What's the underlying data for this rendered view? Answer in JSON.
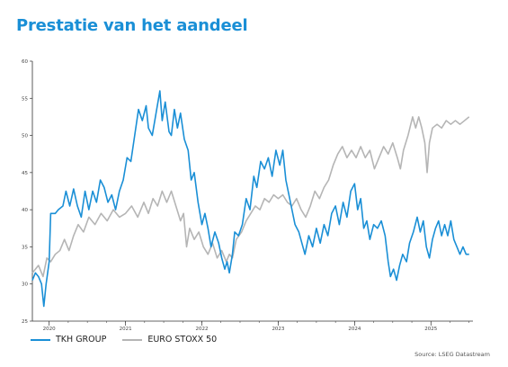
{
  "title": "Prestatie van het aandeel",
  "source": "Source: LSEG Datastream",
  "colors": {
    "title": "#1a8fd6",
    "tkh": "#1a8fd6",
    "stoxx": "#b5b5b5"
  },
  "chart_data": {
    "type": "line",
    "title": "Prestatie van het aandeel",
    "xlabel": "",
    "ylabel": "",
    "xlim": [
      2019.78,
      2025.55
    ],
    "ylim": [
      25,
      60
    ],
    "y_ticks": [
      "25",
      "30",
      "35",
      "40",
      "45",
      "50",
      "55",
      "60"
    ],
    "x_ticks": [
      {
        "label": "2020",
        "x": 2020.0
      },
      {
        "label": "2021",
        "x": 2021.0
      },
      {
        "label": "2022",
        "x": 2022.0
      },
      {
        "label": "2023",
        "x": 2023.0
      },
      {
        "label": "2024",
        "x": 2024.0
      },
      {
        "label": "2025",
        "x": 2025.0
      }
    ],
    "grid": false,
    "legend_position": "bottom-left",
    "series": [
      {
        "name": "TKH GROUP",
        "color": "#1a8fd6",
        "points": [
          [
            2019.78,
            30.5
          ],
          [
            2019.82,
            31.5
          ],
          [
            2019.86,
            31.0
          ],
          [
            2019.9,
            30.0
          ],
          [
            2019.93,
            27.0
          ],
          [
            2019.96,
            30.0
          ],
          [
            2020.0,
            33.0
          ],
          [
            2020.02,
            39.5
          ],
          [
            2020.08,
            39.5
          ],
          [
            2020.12,
            40.0
          ],
          [
            2020.18,
            40.5
          ],
          [
            2020.22,
            42.5
          ],
          [
            2020.27,
            40.5
          ],
          [
            2020.32,
            42.8
          ],
          [
            2020.37,
            40.5
          ],
          [
            2020.42,
            39.0
          ],
          [
            2020.47,
            42.5
          ],
          [
            2020.52,
            40.0
          ],
          [
            2020.57,
            42.5
          ],
          [
            2020.62,
            41.0
          ],
          [
            2020.67,
            44.0
          ],
          [
            2020.72,
            43.0
          ],
          [
            2020.77,
            41.0
          ],
          [
            2020.82,
            42.0
          ],
          [
            2020.87,
            40.0
          ],
          [
            2020.92,
            42.5
          ],
          [
            2020.97,
            44.0
          ],
          [
            2021.02,
            47.0
          ],
          [
            2021.07,
            46.5
          ],
          [
            2021.12,
            50.0
          ],
          [
            2021.17,
            53.5
          ],
          [
            2021.22,
            52.0
          ],
          [
            2021.27,
            54.0
          ],
          [
            2021.3,
            51.0
          ],
          [
            2021.35,
            50.0
          ],
          [
            2021.4,
            53.0
          ],
          [
            2021.45,
            56.0
          ],
          [
            2021.48,
            52.0
          ],
          [
            2021.52,
            54.5
          ],
          [
            2021.57,
            50.5
          ],
          [
            2021.6,
            50.0
          ],
          [
            2021.64,
            53.5
          ],
          [
            2021.68,
            51.0
          ],
          [
            2021.72,
            53.0
          ],
          [
            2021.77,
            49.5
          ],
          [
            2021.82,
            48.0
          ],
          [
            2021.86,
            44.0
          ],
          [
            2021.9,
            45.0
          ],
          [
            2021.95,
            41.0
          ],
          [
            2022.0,
            38.0
          ],
          [
            2022.04,
            39.5
          ],
          [
            2022.08,
            37.5
          ],
          [
            2022.12,
            35.0
          ],
          [
            2022.17,
            37.0
          ],
          [
            2022.22,
            35.5
          ],
          [
            2022.26,
            33.5
          ],
          [
            2022.3,
            32.0
          ],
          [
            2022.33,
            33.0
          ],
          [
            2022.36,
            31.5
          ],
          [
            2022.4,
            34.0
          ],
          [
            2022.43,
            37.0
          ],
          [
            2022.48,
            36.5
          ],
          [
            2022.53,
            38.0
          ],
          [
            2022.58,
            41.5
          ],
          [
            2022.63,
            40.0
          ],
          [
            2022.68,
            44.5
          ],
          [
            2022.72,
            43.0
          ],
          [
            2022.77,
            46.5
          ],
          [
            2022.82,
            45.5
          ],
          [
            2022.87,
            47.0
          ],
          [
            2022.92,
            44.5
          ],
          [
            2022.97,
            48.0
          ],
          [
            2023.02,
            46.0
          ],
          [
            2023.06,
            48.0
          ],
          [
            2023.1,
            44.0
          ],
          [
            2023.14,
            42.0
          ],
          [
            2023.18,
            40.0
          ],
          [
            2023.22,
            38.0
          ],
          [
            2023.27,
            37.0
          ],
          [
            2023.31,
            35.5
          ],
          [
            2023.35,
            34.0
          ],
          [
            2023.4,
            36.5
          ],
          [
            2023.45,
            35.0
          ],
          [
            2023.5,
            37.5
          ],
          [
            2023.55,
            35.5
          ],
          [
            2023.6,
            38.0
          ],
          [
            2023.65,
            36.5
          ],
          [
            2023.7,
            39.5
          ],
          [
            2023.75,
            40.5
          ],
          [
            2023.8,
            38.0
          ],
          [
            2023.85,
            41.0
          ],
          [
            2023.9,
            39.0
          ],
          [
            2023.95,
            42.5
          ],
          [
            2024.0,
            43.5
          ],
          [
            2024.04,
            40.0
          ],
          [
            2024.08,
            41.5
          ],
          [
            2024.12,
            37.5
          ],
          [
            2024.16,
            38.5
          ],
          [
            2024.2,
            36.0
          ],
          [
            2024.25,
            38.0
          ],
          [
            2024.3,
            37.5
          ],
          [
            2024.35,
            38.5
          ],
          [
            2024.4,
            36.5
          ],
          [
            2024.44,
            33.0
          ],
          [
            2024.47,
            31.0
          ],
          [
            2024.51,
            32.0
          ],
          [
            2024.55,
            30.5
          ],
          [
            2024.59,
            32.5
          ],
          [
            2024.63,
            34.0
          ],
          [
            2024.68,
            33.0
          ],
          [
            2024.72,
            35.5
          ],
          [
            2024.77,
            37.0
          ],
          [
            2024.82,
            39.0
          ],
          [
            2024.86,
            37.0
          ],
          [
            2024.9,
            38.5
          ],
          [
            2024.94,
            35.0
          ],
          [
            2024.98,
            33.5
          ],
          [
            2025.02,
            36.0
          ],
          [
            2025.06,
            37.5
          ],
          [
            2025.1,
            38.5
          ],
          [
            2025.14,
            36.5
          ],
          [
            2025.18,
            38.0
          ],
          [
            2025.22,
            36.5
          ],
          [
            2025.26,
            38.5
          ],
          [
            2025.3,
            36.0
          ],
          [
            2025.34,
            35.0
          ],
          [
            2025.38,
            34.0
          ],
          [
            2025.42,
            35.0
          ],
          [
            2025.46,
            34.0
          ],
          [
            2025.5,
            34.0
          ]
        ]
      },
      {
        "name": "EURO STOXX 50",
        "color": "#b5b5b5",
        "points": [
          [
            2019.78,
            31.5
          ],
          [
            2019.86,
            32.5
          ],
          [
            2019.92,
            31.0
          ],
          [
            2019.97,
            33.5
          ],
          [
            2020.02,
            33.0
          ],
          [
            2020.08,
            34.0
          ],
          [
            2020.14,
            34.5
          ],
          [
            2020.2,
            36.0
          ],
          [
            2020.26,
            34.5
          ],
          [
            2020.32,
            36.5
          ],
          [
            2020.38,
            38.0
          ],
          [
            2020.45,
            37.0
          ],
          [
            2020.52,
            39.0
          ],
          [
            2020.6,
            38.0
          ],
          [
            2020.68,
            39.5
          ],
          [
            2020.76,
            38.5
          ],
          [
            2020.84,
            40.0
          ],
          [
            2020.92,
            39.0
          ],
          [
            2021.0,
            39.5
          ],
          [
            2021.08,
            40.5
          ],
          [
            2021.16,
            39.0
          ],
          [
            2021.24,
            41.0
          ],
          [
            2021.3,
            39.5
          ],
          [
            2021.36,
            41.5
          ],
          [
            2021.42,
            40.5
          ],
          [
            2021.48,
            42.5
          ],
          [
            2021.54,
            41.0
          ],
          [
            2021.6,
            42.5
          ],
          [
            2021.66,
            40.5
          ],
          [
            2021.72,
            38.5
          ],
          [
            2021.76,
            39.5
          ],
          [
            2021.8,
            35.0
          ],
          [
            2021.84,
            37.5
          ],
          [
            2021.9,
            36.0
          ],
          [
            2021.96,
            37.0
          ],
          [
            2022.02,
            35.0
          ],
          [
            2022.08,
            34.0
          ],
          [
            2022.14,
            35.5
          ],
          [
            2022.2,
            33.5
          ],
          [
            2022.26,
            34.5
          ],
          [
            2022.32,
            33.0
          ],
          [
            2022.36,
            34.0
          ],
          [
            2022.4,
            33.5
          ],
          [
            2022.45,
            36.0
          ],
          [
            2022.52,
            37.0
          ],
          [
            2022.58,
            38.5
          ],
          [
            2022.64,
            39.5
          ],
          [
            2022.7,
            40.5
          ],
          [
            2022.76,
            40.0
          ],
          [
            2022.82,
            41.5
          ],
          [
            2022.88,
            41.0
          ],
          [
            2022.94,
            42.0
          ],
          [
            2023.0,
            41.5
          ],
          [
            2023.06,
            42.0
          ],
          [
            2023.12,
            41.0
          ],
          [
            2023.18,
            40.5
          ],
          [
            2023.24,
            41.5
          ],
          [
            2023.3,
            40.0
          ],
          [
            2023.36,
            39.0
          ],
          [
            2023.42,
            40.5
          ],
          [
            2023.48,
            42.5
          ],
          [
            2023.54,
            41.5
          ],
          [
            2023.6,
            43.0
          ],
          [
            2023.66,
            44.0
          ],
          [
            2023.72,
            46.0
          ],
          [
            2023.78,
            47.5
          ],
          [
            2023.84,
            48.5
          ],
          [
            2023.9,
            47.0
          ],
          [
            2023.96,
            48.0
          ],
          [
            2024.02,
            47.0
          ],
          [
            2024.08,
            48.5
          ],
          [
            2024.14,
            47.0
          ],
          [
            2024.2,
            48.0
          ],
          [
            2024.26,
            45.5
          ],
          [
            2024.32,
            47.0
          ],
          [
            2024.38,
            48.5
          ],
          [
            2024.44,
            47.5
          ],
          [
            2024.5,
            49.0
          ],
          [
            2024.56,
            47.0
          ],
          [
            2024.6,
            45.5
          ],
          [
            2024.64,
            48.0
          ],
          [
            2024.7,
            50.0
          ],
          [
            2024.76,
            52.5
          ],
          [
            2024.8,
            51.0
          ],
          [
            2024.84,
            52.5
          ],
          [
            2024.88,
            51.0
          ],
          [
            2024.92,
            49.0
          ],
          [
            2024.95,
            45.0
          ],
          [
            2024.98,
            49.0
          ],
          [
            2025.02,
            51.0
          ],
          [
            2025.08,
            51.5
          ],
          [
            2025.14,
            51.0
          ],
          [
            2025.2,
            52.0
          ],
          [
            2025.26,
            51.5
          ],
          [
            2025.32,
            52.0
          ],
          [
            2025.38,
            51.5
          ],
          [
            2025.44,
            52.0
          ],
          [
            2025.5,
            52.5
          ]
        ]
      }
    ]
  }
}
